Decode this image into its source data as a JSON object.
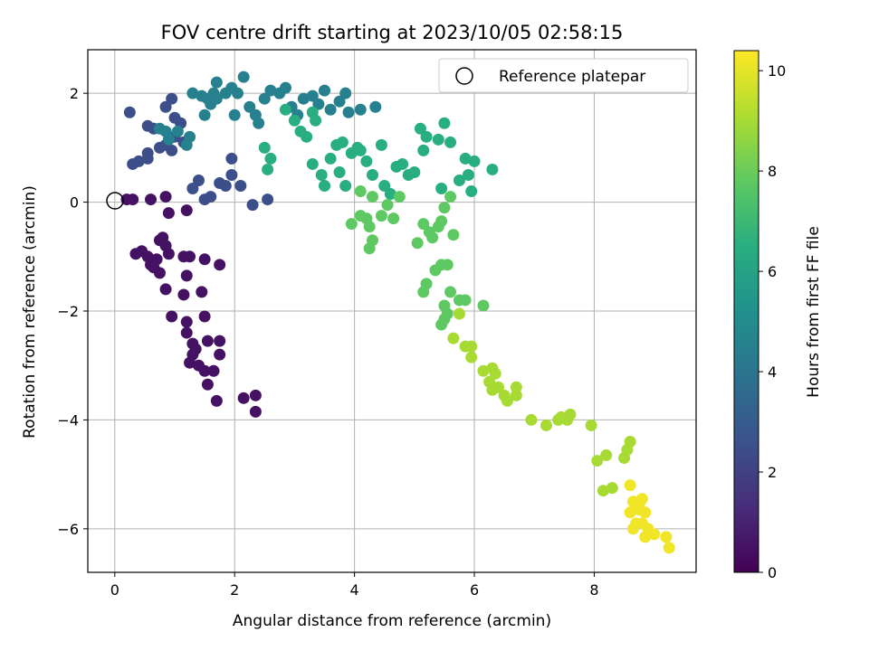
{
  "chart_data": {
    "type": "scatter",
    "title": "FOV centre drift starting at 2023/10/05 02:58:15",
    "xlabel": "Angular distance from reference (arcmin)",
    "ylabel": "Rotation from reference (arcmin)",
    "xlim": [
      -0.45,
      9.7
    ],
    "ylim": [
      -6.8,
      2.8
    ],
    "xticks": [
      0,
      2,
      4,
      6,
      8
    ],
    "yticks": [
      -6,
      -4,
      -2,
      0,
      2
    ],
    "grid": true,
    "legend": {
      "placement": "top-right",
      "entries": [
        "Reference platepar"
      ]
    },
    "reference_point": {
      "x": 0,
      "y": 0,
      "label": "Reference platepar"
    },
    "colorbar": {
      "label": "Hours from first FF file",
      "range": [
        0,
        10.4
      ],
      "ticks": [
        0,
        2,
        4,
        6,
        8,
        10
      ],
      "colormap": "viridis"
    },
    "series": [
      {
        "points": [
          [
            0.2,
            0.05
          ],
          [
            0.3,
            0.05
          ],
          [
            0.6,
            0.05
          ],
          [
            0.85,
            0.1
          ],
          [
            0.9,
            -0.2
          ],
          [
            1.2,
            -0.15
          ],
          [
            0.35,
            -0.95
          ],
          [
            0.45,
            -0.9
          ],
          [
            0.55,
            -1.0
          ],
          [
            0.6,
            -1.15
          ],
          [
            0.65,
            -1.2
          ],
          [
            0.75,
            -1.3
          ],
          [
            0.7,
            -1.05
          ],
          [
            0.8,
            -0.65
          ],
          [
            0.75,
            -0.7
          ],
          [
            0.85,
            -0.8
          ],
          [
            0.9,
            -0.95
          ],
          [
            0.85,
            -1.6
          ],
          [
            1.15,
            -1.0
          ],
          [
            1.25,
            -1.0
          ],
          [
            1.2,
            -1.35
          ],
          [
            1.15,
            -1.7
          ],
          [
            1.5,
            -1.05
          ],
          [
            1.75,
            -1.15
          ],
          [
            0.95,
            -2.1
          ],
          [
            1.2,
            -2.2
          ],
          [
            1.5,
            -2.1
          ],
          [
            1.45,
            -1.65
          ],
          [
            1.2,
            -2.4
          ],
          [
            1.3,
            -2.6
          ],
          [
            1.3,
            -2.8
          ],
          [
            1.35,
            -2.7
          ],
          [
            1.25,
            -2.95
          ],
          [
            1.4,
            -3.0
          ],
          [
            1.5,
            -3.1
          ],
          [
            1.55,
            -3.35
          ],
          [
            1.65,
            -3.1
          ],
          [
            1.55,
            -2.55
          ],
          [
            1.75,
            -2.55
          ],
          [
            1.75,
            -2.8
          ],
          [
            1.7,
            -3.65
          ],
          [
            2.15,
            -3.6
          ],
          [
            2.35,
            -3.55
          ],
          [
            2.35,
            -3.85
          ]
        ],
        "hours": 0.5
      },
      {
        "points": [
          [
            1.3,
            0.25
          ],
          [
            1.4,
            0.4
          ],
          [
            1.6,
            0.1
          ],
          [
            1.5,
            0.05
          ],
          [
            1.75,
            0.35
          ],
          [
            1.95,
            0.5
          ],
          [
            1.85,
            0.3
          ],
          [
            2.1,
            0.3
          ],
          [
            2.3,
            -0.05
          ],
          [
            2.55,
            0.05
          ],
          [
            0.4,
            0.75
          ],
          [
            0.55,
            0.9
          ],
          [
            0.3,
            0.7
          ],
          [
            0.55,
            0.8
          ],
          [
            0.75,
            1.0
          ],
          [
            0.85,
            1.05
          ],
          [
            1.0,
            1.2
          ],
          [
            1.15,
            1.1
          ],
          [
            0.95,
            0.95
          ],
          [
            1.95,
            0.8
          ],
          [
            0.25,
            1.65
          ],
          [
            0.55,
            1.4
          ],
          [
            1.0,
            1.55
          ],
          [
            0.65,
            1.35
          ],
          [
            0.85,
            1.75
          ],
          [
            0.95,
            1.9
          ],
          [
            1.1,
            1.45
          ]
        ],
        "hours": 2.5
      },
      {
        "points": [
          [
            0.75,
            1.35
          ],
          [
            0.85,
            1.3
          ],
          [
            0.9,
            1.15
          ],
          [
            1.05,
            1.3
          ],
          [
            1.25,
            1.2
          ],
          [
            1.2,
            1.05
          ],
          [
            1.3,
            2.0
          ],
          [
            1.45,
            1.95
          ],
          [
            1.55,
            1.9
          ],
          [
            1.65,
            2.0
          ],
          [
            1.7,
            2.2
          ],
          [
            1.85,
            2.0
          ],
          [
            1.95,
            2.1
          ],
          [
            2.05,
            2.0
          ],
          [
            2.15,
            2.3
          ],
          [
            2.0,
            1.6
          ],
          [
            2.25,
            1.75
          ],
          [
            2.35,
            1.6
          ],
          [
            2.4,
            1.45
          ],
          [
            2.5,
            1.9
          ],
          [
            2.6,
            2.05
          ],
          [
            2.75,
            2.0
          ],
          [
            2.85,
            2.1
          ],
          [
            2.95,
            1.75
          ],
          [
            3.05,
            1.6
          ],
          [
            3.15,
            1.9
          ],
          [
            3.3,
            1.95
          ],
          [
            3.4,
            1.8
          ],
          [
            3.5,
            2.05
          ],
          [
            3.6,
            1.7
          ],
          [
            3.75,
            1.85
          ],
          [
            3.85,
            2.0
          ],
          [
            3.9,
            1.65
          ],
          [
            4.1,
            1.7
          ],
          [
            4.35,
            1.75
          ],
          [
            1.5,
            1.6
          ],
          [
            1.6,
            1.8
          ],
          [
            1.7,
            1.9
          ]
        ],
        "hours": 4.5
      },
      {
        "points": [
          [
            2.5,
            1.0
          ],
          [
            2.6,
            0.8
          ],
          [
            2.55,
            0.6
          ],
          [
            2.85,
            1.7
          ],
          [
            3.0,
            1.5
          ],
          [
            3.1,
            1.3
          ],
          [
            3.2,
            1.2
          ],
          [
            3.35,
            1.5
          ],
          [
            3.3,
            1.65
          ],
          [
            3.3,
            0.7
          ],
          [
            3.45,
            0.5
          ],
          [
            3.5,
            0.3
          ],
          [
            3.6,
            0.8
          ],
          [
            3.7,
            1.05
          ],
          [
            3.8,
            1.1
          ],
          [
            3.75,
            0.55
          ],
          [
            3.85,
            0.3
          ],
          [
            3.95,
            0.9
          ],
          [
            4.1,
            0.95
          ],
          [
            4.05,
            1.0
          ],
          [
            4.2,
            0.75
          ],
          [
            4.3,
            0.5
          ],
          [
            4.45,
            1.05
          ],
          [
            4.5,
            0.3
          ],
          [
            4.6,
            0.15
          ],
          [
            4.7,
            0.65
          ],
          [
            4.8,
            0.7
          ],
          [
            4.9,
            0.5
          ],
          [
            5.0,
            0.55
          ],
          [
            5.1,
            1.35
          ],
          [
            5.2,
            1.2
          ],
          [
            5.4,
            1.15
          ],
          [
            5.5,
            1.45
          ],
          [
            5.6,
            1.1
          ],
          [
            5.85,
            0.8
          ],
          [
            5.9,
            0.5
          ],
          [
            6.0,
            0.75
          ],
          [
            5.75,
            0.4
          ],
          [
            5.95,
            0.2
          ],
          [
            6.3,
            0.6
          ],
          [
            5.45,
            0.25
          ],
          [
            5.15,
            0.95
          ]
        ],
        "hours": 6.5
      },
      {
        "points": [
          [
            3.95,
            -0.4
          ],
          [
            4.1,
            -0.25
          ],
          [
            4.2,
            -0.3
          ],
          [
            4.25,
            -0.45
          ],
          [
            4.3,
            -0.7
          ],
          [
            4.45,
            -0.25
          ],
          [
            4.25,
            -0.85
          ],
          [
            4.55,
            -0.05
          ],
          [
            4.65,
            -0.3
          ],
          [
            4.75,
            0.1
          ],
          [
            5.05,
            -0.75
          ],
          [
            5.15,
            -0.4
          ],
          [
            5.25,
            -0.55
          ],
          [
            5.3,
            -0.65
          ],
          [
            5.4,
            -0.45
          ],
          [
            5.45,
            -0.35
          ],
          [
            5.65,
            -0.6
          ],
          [
            5.5,
            -0.1
          ],
          [
            5.6,
            0.1
          ],
          [
            4.1,
            0.2
          ],
          [
            4.3,
            0.1
          ],
          [
            5.15,
            -1.65
          ],
          [
            5.2,
            -1.5
          ],
          [
            5.35,
            -1.25
          ],
          [
            5.45,
            -1.15
          ],
          [
            5.55,
            -1.15
          ],
          [
            5.5,
            -1.9
          ],
          [
            5.55,
            -2.05
          ],
          [
            5.6,
            -1.65
          ],
          [
            5.75,
            -1.8
          ],
          [
            5.85,
            -1.8
          ],
          [
            6.15,
            -1.9
          ],
          [
            5.45,
            -2.25
          ],
          [
            5.5,
            -2.15
          ]
        ],
        "hours": 7.8
      },
      {
        "points": [
          [
            5.75,
            -2.05
          ],
          [
            5.65,
            -2.5
          ],
          [
            5.85,
            -2.65
          ],
          [
            5.95,
            -2.85
          ],
          [
            5.95,
            -2.65
          ],
          [
            6.15,
            -3.1
          ],
          [
            6.25,
            -3.3
          ],
          [
            6.3,
            -3.05
          ],
          [
            6.35,
            -3.15
          ],
          [
            6.3,
            -3.45
          ],
          [
            6.4,
            -3.4
          ],
          [
            6.5,
            -3.55
          ],
          [
            6.55,
            -3.65
          ],
          [
            6.7,
            -3.4
          ],
          [
            6.7,
            -3.55
          ],
          [
            6.95,
            -4.0
          ],
          [
            7.2,
            -4.1
          ],
          [
            7.4,
            -4.0
          ],
          [
            7.45,
            -3.95
          ],
          [
            7.55,
            -4.0
          ],
          [
            7.6,
            -3.9
          ],
          [
            7.95,
            -4.1
          ],
          [
            8.05,
            -4.75
          ],
          [
            8.2,
            -4.65
          ],
          [
            8.15,
            -5.3
          ],
          [
            8.3,
            -5.25
          ],
          [
            8.5,
            -4.7
          ],
          [
            8.55,
            -4.55
          ],
          [
            8.6,
            -4.4
          ]
        ],
        "hours": 9.0
      },
      {
        "points": [
          [
            8.6,
            -5.2
          ],
          [
            8.65,
            -5.5
          ],
          [
            8.6,
            -5.7
          ],
          [
            8.75,
            -5.65
          ],
          [
            8.8,
            -5.45
          ],
          [
            8.7,
            -5.9
          ],
          [
            8.85,
            -5.7
          ],
          [
            8.9,
            -6.0
          ],
          [
            8.65,
            -6.0
          ],
          [
            8.85,
            -6.15
          ],
          [
            9.0,
            -6.1
          ],
          [
            9.2,
            -6.15
          ],
          [
            9.25,
            -6.35
          ],
          [
            8.8,
            -5.9
          ],
          [
            8.75,
            -5.55
          ]
        ],
        "hours": 10.2
      }
    ]
  }
}
